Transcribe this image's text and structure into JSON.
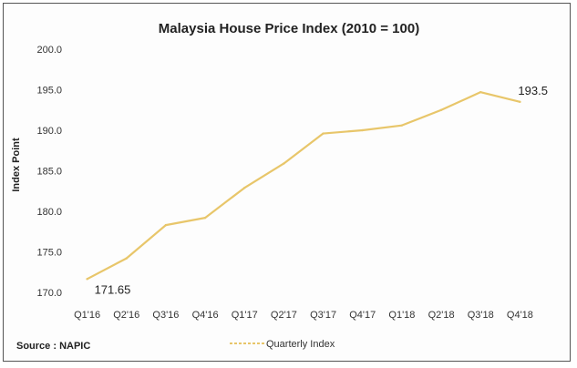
{
  "chart_data": {
    "type": "line",
    "title": "Malaysia House Price Index  (2010 = 100)",
    "ylabel": "Index Point",
    "xlabel": "",
    "categories": [
      "Q1'16",
      "Q2'16",
      "Q3'16",
      "Q4'16",
      "Q1'17",
      "Q2'17",
      "Q3'17",
      "Q4'17",
      "Q1'18",
      "Q2'18",
      "Q3'18",
      "Q4'18"
    ],
    "series": [
      {
        "name": "Quarterly Index",
        "color": "#e8c66a",
        "values": [
          171.65,
          174.2,
          178.3,
          179.2,
          182.9,
          185.9,
          189.6,
          190.0,
          190.6,
          192.5,
          194.7,
          193.5
        ]
      }
    ],
    "ylim": [
      170,
      200
    ],
    "yticks": [
      "170.0",
      "175.0",
      "180.0",
      "185.0",
      "190.0",
      "195.0",
      "200.0"
    ],
    "data_labels": [
      {
        "index": 0,
        "text": "171.65"
      },
      {
        "index": 11,
        "text": "193.5"
      }
    ],
    "grid": false,
    "legend_position": "bottom-center"
  },
  "source": "Source : NAPIC"
}
